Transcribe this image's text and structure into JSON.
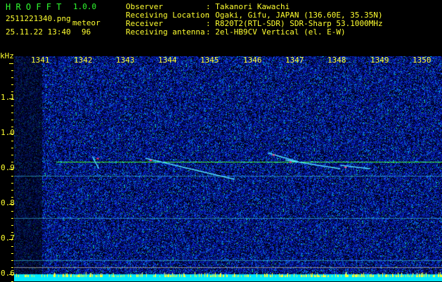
{
  "header": {
    "app_name": "H R O F F T",
    "version": "1.0.0",
    "filename": "2511221340.png",
    "datetime": "25.11.22 13:40",
    "meteor_label": "meteor",
    "meteor_count": "96",
    "info": [
      {
        "label": "Observer",
        "value": ": Takanori Kawachi"
      },
      {
        "label": "Receiving Location",
        "value": ": Ogaki, Gifu, JAPAN (136.60E, 35.35N)"
      },
      {
        "label": "Receiver",
        "value": ": R820T2(RTL-SDR) SDR-Sharp 53.1000MHz"
      },
      {
        "label": "Receiving antenna",
        "value": ": 2el-HB9CV Vertical (el. E-W)"
      }
    ]
  },
  "chart_data": {
    "type": "heatmap",
    "ylabel": "kHz",
    "x_ticks": [
      "1341",
      "1342",
      "1343",
      "1344",
      "1345",
      "1346",
      "1347",
      "1348",
      "1349",
      "1350"
    ],
    "y_ticks": [
      "1.1",
      "1.0",
      "0.9",
      "0.8",
      "0.7",
      "0.6"
    ],
    "xlim": [
      1340.2,
      1350.3
    ],
    "ylim": [
      0.58,
      1.22
    ],
    "carrier_khz": 0.92,
    "faint_lines_khz": [
      0.88,
      0.76,
      0.64
    ],
    "marker_lines_khz": [
      0.62,
      0.6
    ],
    "echoes": [
      {
        "t_start": 1342.05,
        "t_end": 1342.2,
        "f_start": 0.935,
        "f_end": 0.9
      },
      {
        "t_start": 1343.3,
        "t_end": 1345.4,
        "f_start": 0.93,
        "f_end": 0.87
      },
      {
        "t_start": 1346.2,
        "t_end": 1346.9,
        "f_start": 0.945,
        "f_end": 0.92
      },
      {
        "t_start": 1346.6,
        "t_end": 1347.9,
        "f_start": 0.925,
        "f_end": 0.9
      },
      {
        "t_start": 1347.9,
        "t_end": 1348.6,
        "f_start": 0.91,
        "f_end": 0.9
      }
    ],
    "colors": {
      "background": "#000000",
      "noise": "#0a20c0",
      "carrier": "#40ff40",
      "level": "#00e8ff",
      "level_peak": "#ffff30",
      "text": "#ffff30",
      "title": "#30ff30"
    }
  }
}
